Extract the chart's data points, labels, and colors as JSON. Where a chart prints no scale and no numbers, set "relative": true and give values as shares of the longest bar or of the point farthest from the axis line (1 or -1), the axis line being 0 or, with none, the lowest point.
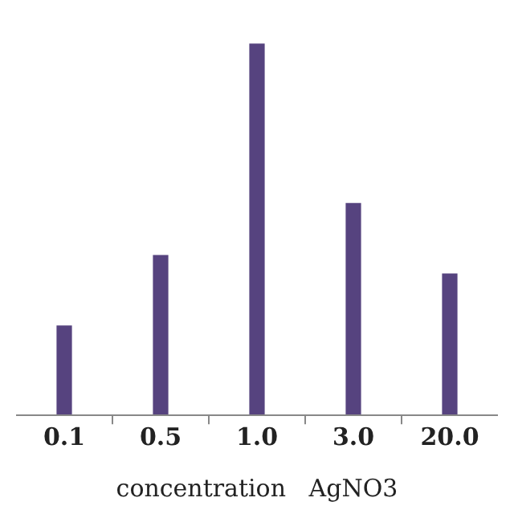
{
  "chart_data": {
    "type": "bar",
    "xlabel": "concentration   AgNO3",
    "categories": [
      "0.1",
      "0.5",
      "1.0",
      "3.0",
      "20.0"
    ],
    "relative": true,
    "series": [
      {
        "color": "#56437f",
        "values": [
          0.24,
          0.43,
          1,
          0.57,
          0.38
        ]
      }
    ]
  }
}
